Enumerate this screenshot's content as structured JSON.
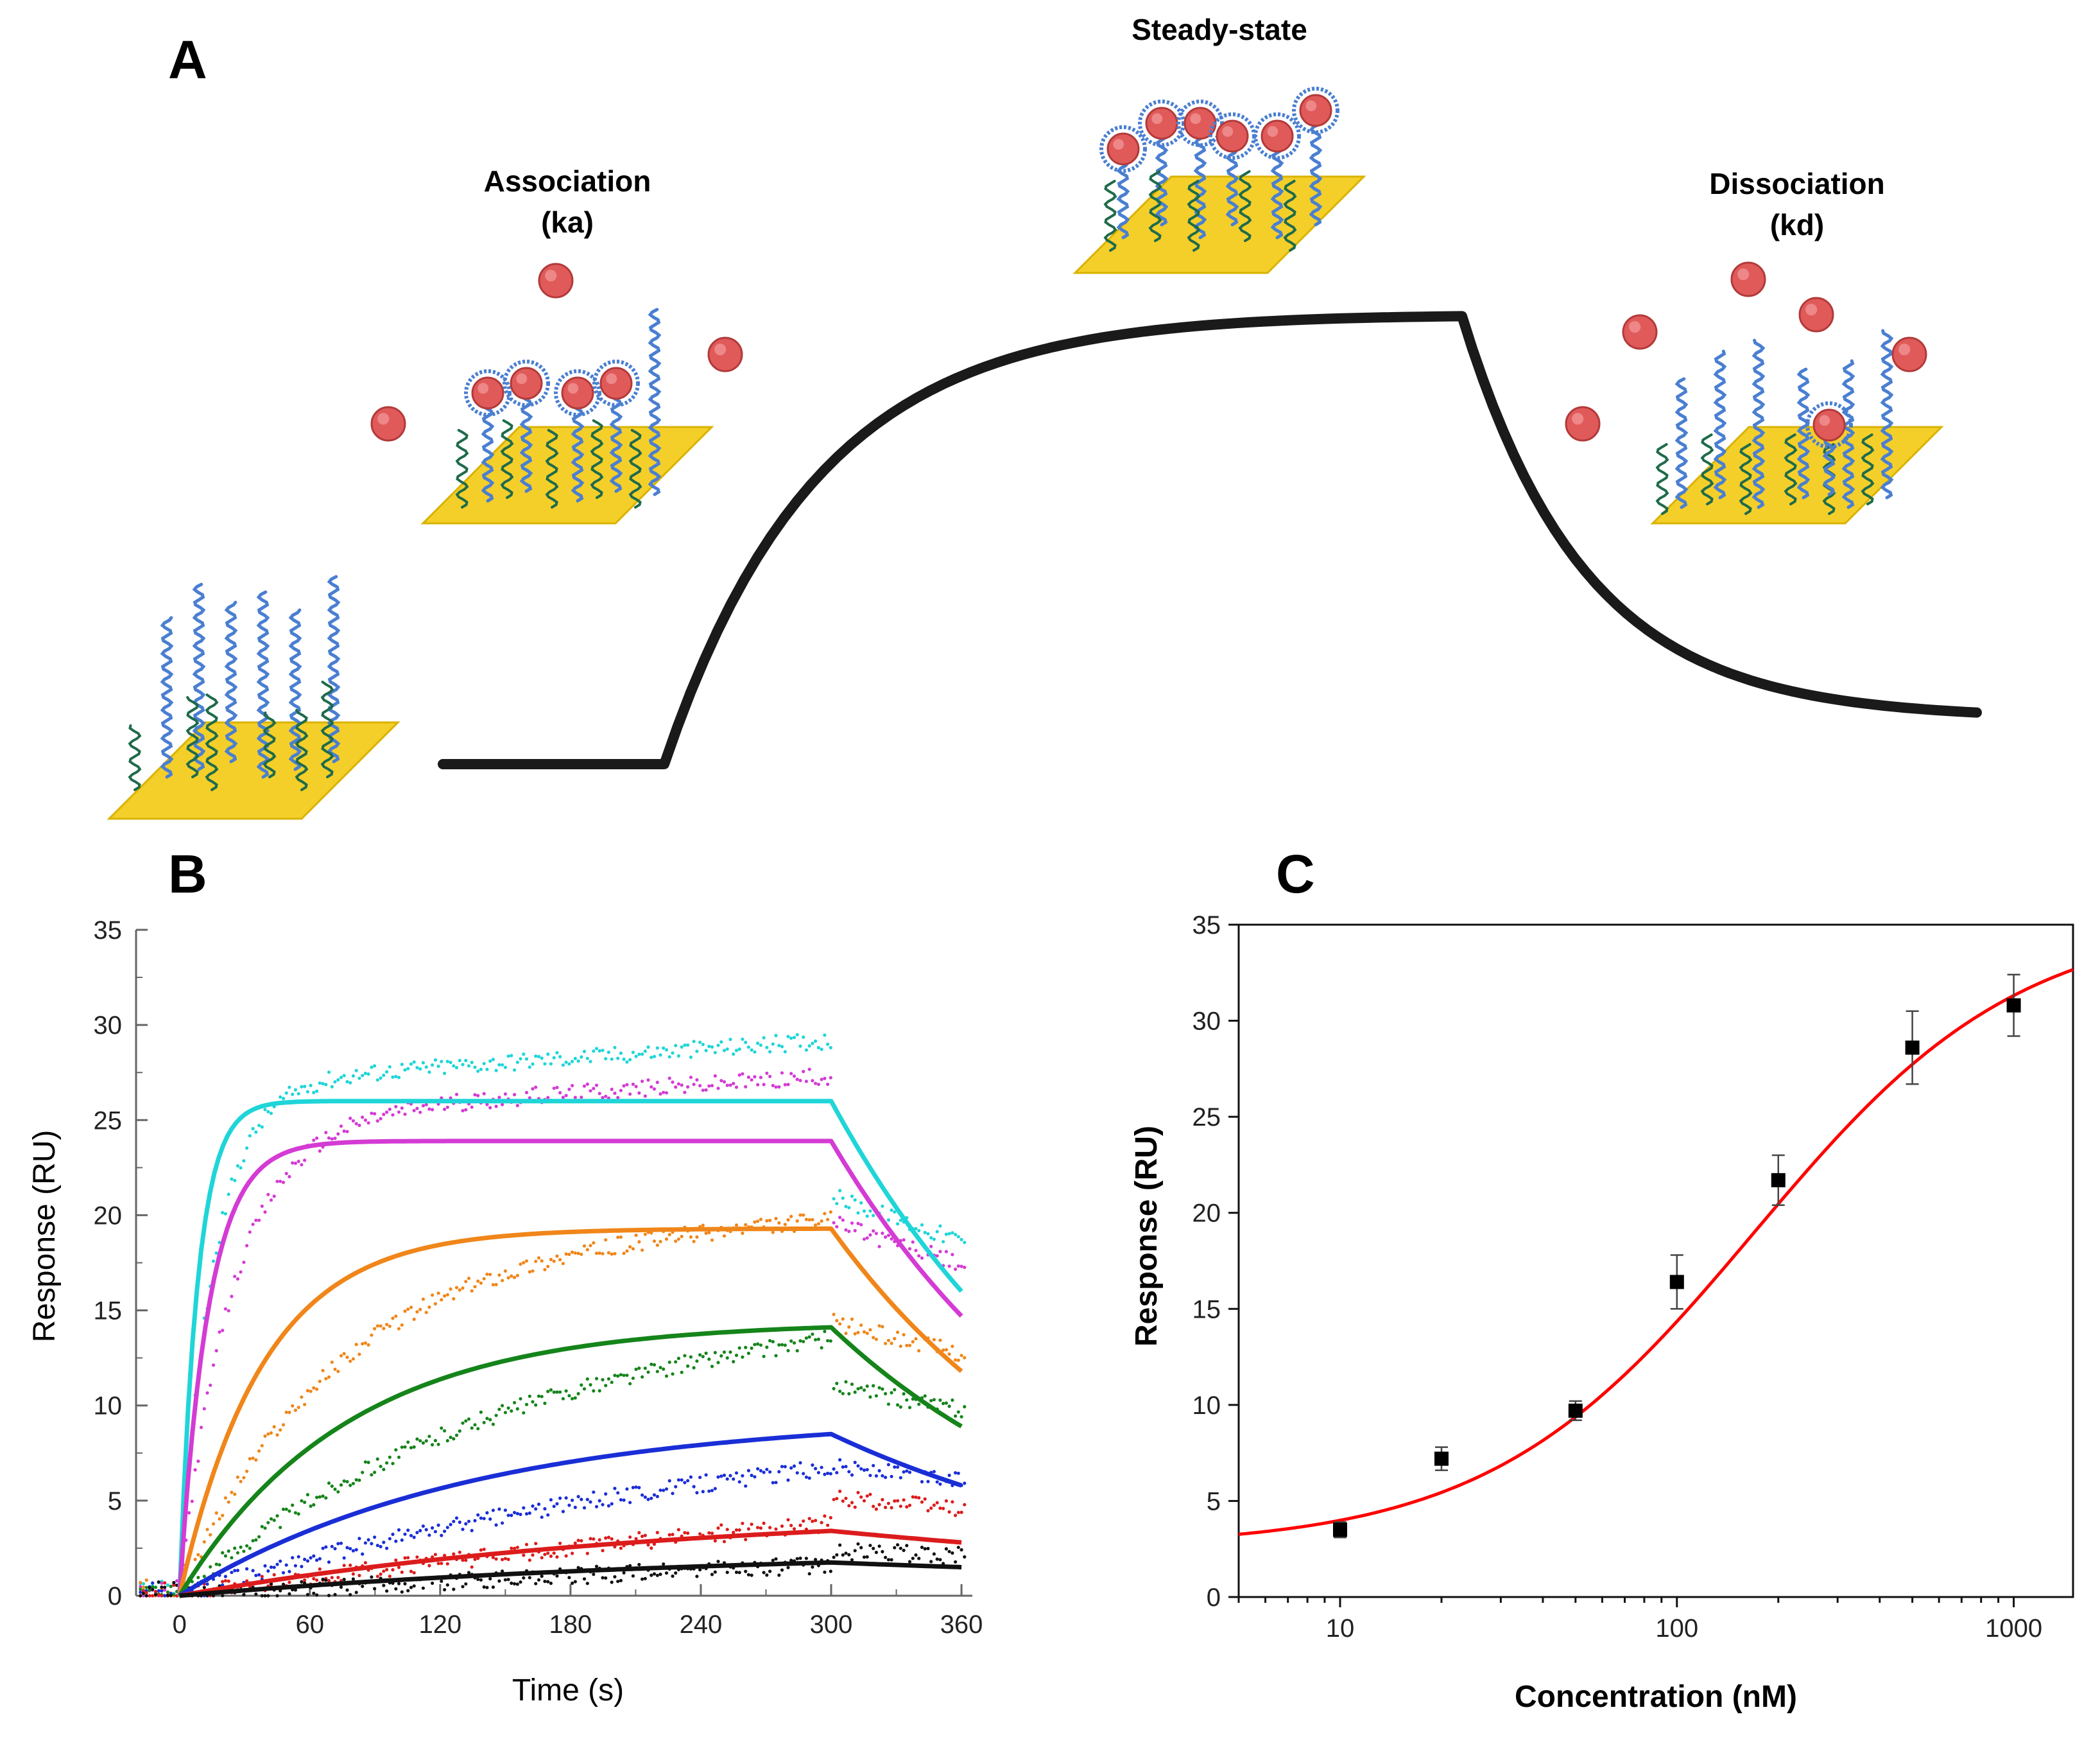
{
  "colors": {
    "gold": "#f4cf2a",
    "bead": "#e05a5a",
    "aptamer_blue": "#4a7fd1",
    "aptamer_green": "#1f6b4a",
    "sensorgram_line": "#1a1a1a",
    "fit_red": "#ff0000"
  },
  "panel_a": {
    "letter": "A",
    "stages": {
      "association": {
        "line1": "Association",
        "line2": "(ka)"
      },
      "steady": {
        "line1": "Steady-state"
      },
      "dissociation": {
        "line1": "Dissociation",
        "line2": "(kd)"
      }
    },
    "profile": {
      "baseline": 0,
      "plateau": 1,
      "end_level": 0.1,
      "association_start_s": 0,
      "dissociation_start_s": 300
    }
  },
  "panel_b": {
    "letter": "B",
    "chart_data": {
      "type": "line",
      "title": "",
      "xlabel": "Time (s)",
      "ylabel": "Response (RU)",
      "xlim": [
        -20,
        365
      ],
      "ylim": [
        0,
        35
      ],
      "xticks": [
        0,
        60,
        120,
        180,
        240,
        300,
        360
      ],
      "yticks": [
        0,
        5,
        10,
        15,
        20,
        25,
        30,
        35
      ],
      "series": [
        {
          "name": "cyan",
          "color": "#1fd5d8",
          "fit_plateau": 26.0,
          "fit_k": 0.12,
          "fit_end": 16.0,
          "data_plateau": 29.2
        },
        {
          "name": "magenta",
          "color": "#d43bd4",
          "fit_plateau": 23.9,
          "fit_k": 0.075,
          "fit_end": 14.7,
          "data_plateau": 27.3
        },
        {
          "name": "orange",
          "color": "#f0861a",
          "fit_plateau": 19.3,
          "fit_k": 0.026,
          "fit_end": 11.8,
          "data_plateau": 20.0
        },
        {
          "name": "green",
          "color": "#15841a",
          "fit_plateau": 14.4,
          "fit_k": 0.013,
          "fit_end": 8.9,
          "data_plateau": 15.3
        },
        {
          "name": "blue",
          "color": "#1a2ed6",
          "fit_plateau": 9.5,
          "fit_k": 0.0075,
          "fit_end": 5.8,
          "data_plateau": 9.5
        },
        {
          "name": "red",
          "color": "#dc1c1c",
          "fit_plateau": 4.6,
          "fit_k": 0.0045,
          "fit_end": 2.8,
          "data_plateau": 7.2
        },
        {
          "name": "black",
          "color": "#111111",
          "fit_plateau": 2.5,
          "fit_k": 0.004,
          "fit_end": 1.5,
          "data_plateau": 3.3
        }
      ]
    }
  },
  "panel_c": {
    "letter": "C",
    "chart_data": {
      "type": "scatter",
      "title": "",
      "xlabel": "Concentration (nM)",
      "ylabel": "Response (RU)",
      "xscale": "log",
      "xlim": [
        5,
        1500
      ],
      "ylim": [
        0,
        35
      ],
      "xticks": [
        10,
        100,
        1000
      ],
      "yticks": [
        0,
        5,
        10,
        15,
        20,
        25,
        30,
        35
      ],
      "points": [
        {
          "x": 10,
          "y": 3.5,
          "err": 0.4
        },
        {
          "x": 20,
          "y": 7.2,
          "err": 0.6
        },
        {
          "x": 50,
          "y": 9.7,
          "err": 0.5
        },
        {
          "x": 100,
          "y": 16.4,
          "err": 1.4
        },
        {
          "x": 200,
          "y": 21.7,
          "err": 1.3
        },
        {
          "x": 500,
          "y": 28.6,
          "err": 1.9
        },
        {
          "x": 1000,
          "y": 30.8,
          "err": 1.6
        }
      ],
      "fit": {
        "type": "hill",
        "min": 2.6,
        "max": 35.4,
        "kd": 170,
        "n": 1.1,
        "color": "#ff0000"
      }
    }
  }
}
